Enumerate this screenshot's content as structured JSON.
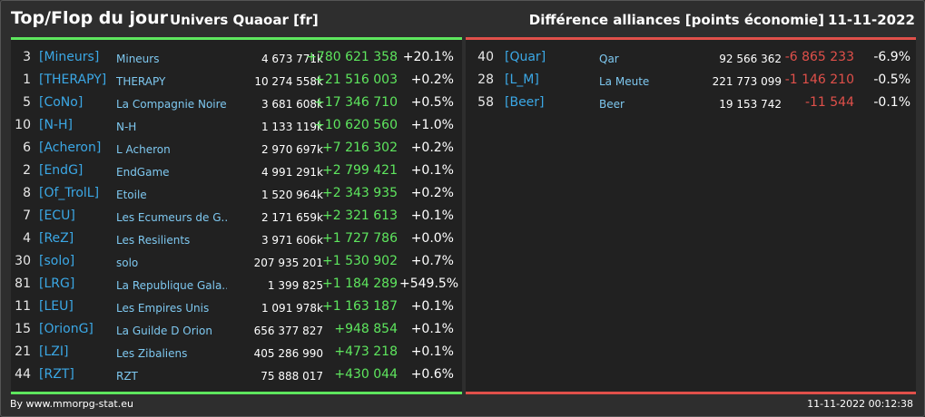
{
  "header": {
    "title": "Top/Flop du jour",
    "universe": "Univers Quaoar [fr]",
    "category": "Différence alliances [points économie]",
    "date": "11-11-2022"
  },
  "colors": {
    "positive": "#5ee65e",
    "negative": "#e0504a",
    "tag": "#3ba8e6",
    "name": "#7ec8f0",
    "background": "#2e2e2e",
    "panel": "#212121"
  },
  "top": [
    {
      "rank": "3",
      "tag": "[Mineurs]",
      "name": "Mineurs",
      "points": "4 673 771k",
      "diff": "+780 621 358",
      "pct": "+20.1%"
    },
    {
      "rank": "1",
      "tag": "[THERAPY]",
      "name": "THERAPY",
      "points": "10 274 558k",
      "diff": "+21 516 003",
      "pct": "+0.2%"
    },
    {
      "rank": "5",
      "tag": "[CoNo]",
      "name": "La Compagnie Noire",
      "points": "3 681 608k",
      "diff": "+17 346 710",
      "pct": "+0.5%"
    },
    {
      "rank": "10",
      "tag": "[N-H]",
      "name": "N-H",
      "points": "1 133 119k",
      "diff": "+10 620 560",
      "pct": "+1.0%"
    },
    {
      "rank": "6",
      "tag": "[Acheron]",
      "name": "L Acheron",
      "points": "2 970 697k",
      "diff": "+7 216 302",
      "pct": "+0.2%"
    },
    {
      "rank": "2",
      "tag": "[EndG]",
      "name": "EndGame",
      "points": "4 991 291k",
      "diff": "+2 799 421",
      "pct": "+0.1%"
    },
    {
      "rank": "8",
      "tag": "[Of_TrolL]",
      "name": "Etoile",
      "points": "1 520 964k",
      "diff": "+2 343 935",
      "pct": "+0.2%"
    },
    {
      "rank": "7",
      "tag": "[ECU]",
      "name": "Les Ecumeurs de G...",
      "points": "2 171 659k",
      "diff": "+2 321 613",
      "pct": "+0.1%"
    },
    {
      "rank": "4",
      "tag": "[ReZ]",
      "name": "Les Resilients",
      "points": "3 971 606k",
      "diff": "+1 727 786",
      "pct": "+0.0%"
    },
    {
      "rank": "30",
      "tag": "[solo]",
      "name": "solo",
      "points": "207 935 201",
      "diff": "+1 530 902",
      "pct": "+0.7%"
    },
    {
      "rank": "81",
      "tag": "[LRG]",
      "name": "La Republique Gala...",
      "points": "1 399 825",
      "diff": "+1 184 289",
      "pct": "+549.5%"
    },
    {
      "rank": "11",
      "tag": "[LEU]",
      "name": "Les Empires Unis",
      "points": "1 091 978k",
      "diff": "+1 163 187",
      "pct": "+0.1%"
    },
    {
      "rank": "15",
      "tag": "[OrionG]",
      "name": "La Guilde D Orion",
      "points": "656 377 827",
      "diff": "+948 854",
      "pct": "+0.1%"
    },
    {
      "rank": "21",
      "tag": "[LZI]",
      "name": "Les Zibaliens",
      "points": "405 286 990",
      "diff": "+473 218",
      "pct": "+0.1%"
    },
    {
      "rank": "44",
      "tag": "[RZT]",
      "name": "RZT",
      "points": "75 888 017",
      "diff": "+430 044",
      "pct": "+0.6%"
    }
  ],
  "flop": [
    {
      "rank": "40",
      "tag": "[Quar]",
      "name": "Qar",
      "points": "92 566 362",
      "diff": "-6 865 233",
      "pct": "-6.9%"
    },
    {
      "rank": "28",
      "tag": "[L_M]",
      "name": "La Meute",
      "points": "221 773 099",
      "diff": "-1 146 210",
      "pct": "-0.5%"
    },
    {
      "rank": "58",
      "tag": "[Beer]",
      "name": "Beer",
      "points": "19 153 742",
      "diff": "-11 544",
      "pct": "-0.1%"
    }
  ],
  "footer": {
    "source": "By www.mmorpg-stat.eu",
    "timestamp": "11-11-2022 00:12:38"
  }
}
